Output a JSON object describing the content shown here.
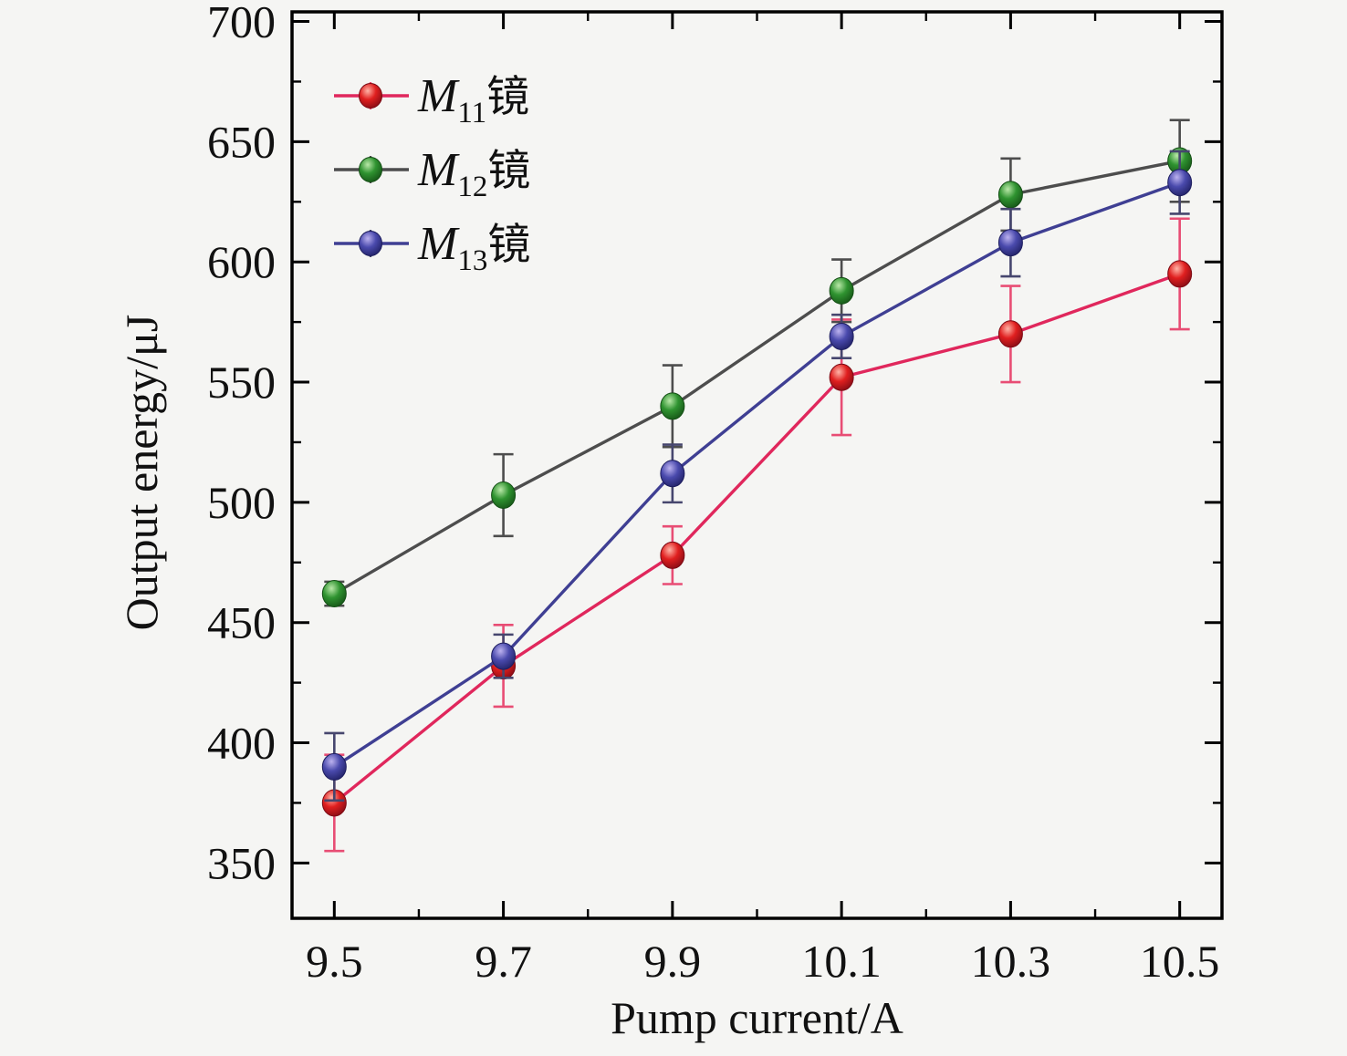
{
  "chart_data": {
    "type": "line",
    "title": "",
    "xlabel": "Pump current/A",
    "ylabel": "Output energy/μJ",
    "grid": false,
    "legend_position": "upper-left",
    "xlim": [
      9.45,
      10.55
    ],
    "ylim": [
      327,
      704
    ],
    "x": [
      9.5,
      9.7,
      9.9,
      10.1,
      10.3,
      10.5
    ],
    "x_major_ticks": [
      9.5,
      9.7,
      9.9,
      10.1,
      10.3,
      10.5
    ],
    "x_tick_labels": [
      "9.5",
      "9.7",
      "9.9",
      "10.1",
      "10.3",
      "10.5"
    ],
    "x_minor_ticks": [
      9.6,
      9.8,
      10.0,
      10.2,
      10.4
    ],
    "y_major_ticks": [
      350,
      400,
      450,
      500,
      550,
      600,
      650,
      700
    ],
    "y_tick_labels": [
      "350",
      "400",
      "450",
      "500",
      "550",
      "600",
      "650",
      "700"
    ],
    "y_minor_ticks": [
      375,
      425,
      475,
      525,
      575,
      625,
      675
    ],
    "series": [
      {
        "name": "M11镜",
        "legend": {
          "main": "M",
          "sub": "11",
          "suffix": "镜"
        },
        "values": [
          375,
          432,
          478,
          552,
          570,
          595
        ],
        "errors": [
          20,
          17,
          12,
          24,
          20,
          23
        ],
        "line_color": "#e0275c",
        "error_color": "#e84d74",
        "marker_color": "#e01f1f",
        "marker_highlight": "#ffb3a6",
        "marker_edge": "#7c0a14"
      },
      {
        "name": "M12镜",
        "legend": {
          "main": "M",
          "sub": "12",
          "suffix": "镜"
        },
        "values": [
          462,
          503,
          540,
          588,
          628,
          642
        ],
        "errors": [
          5,
          17,
          17,
          13,
          15,
          17
        ],
        "line_color": "#4d4d4d",
        "error_color": "#4d4d4d",
        "marker_color": "#2f9330",
        "marker_highlight": "#b9e8a8",
        "marker_edge": "#134e14"
      },
      {
        "name": "M13镜",
        "legend": {
          "main": "M",
          "sub": "13",
          "suffix": "镜"
        },
        "values": [
          390,
          436,
          512,
          569,
          608,
          633
        ],
        "errors": [
          14,
          9,
          12,
          9,
          14,
          13
        ],
        "line_color": "#3f3f93",
        "error_color": "#46466e",
        "marker_color": "#4a4aad",
        "marker_highlight": "#bcb2ef",
        "marker_edge": "#1d1d5e"
      }
    ]
  },
  "colors": {
    "background": "#f5f5f3",
    "frame": "#000000",
    "text": "#111111"
  }
}
